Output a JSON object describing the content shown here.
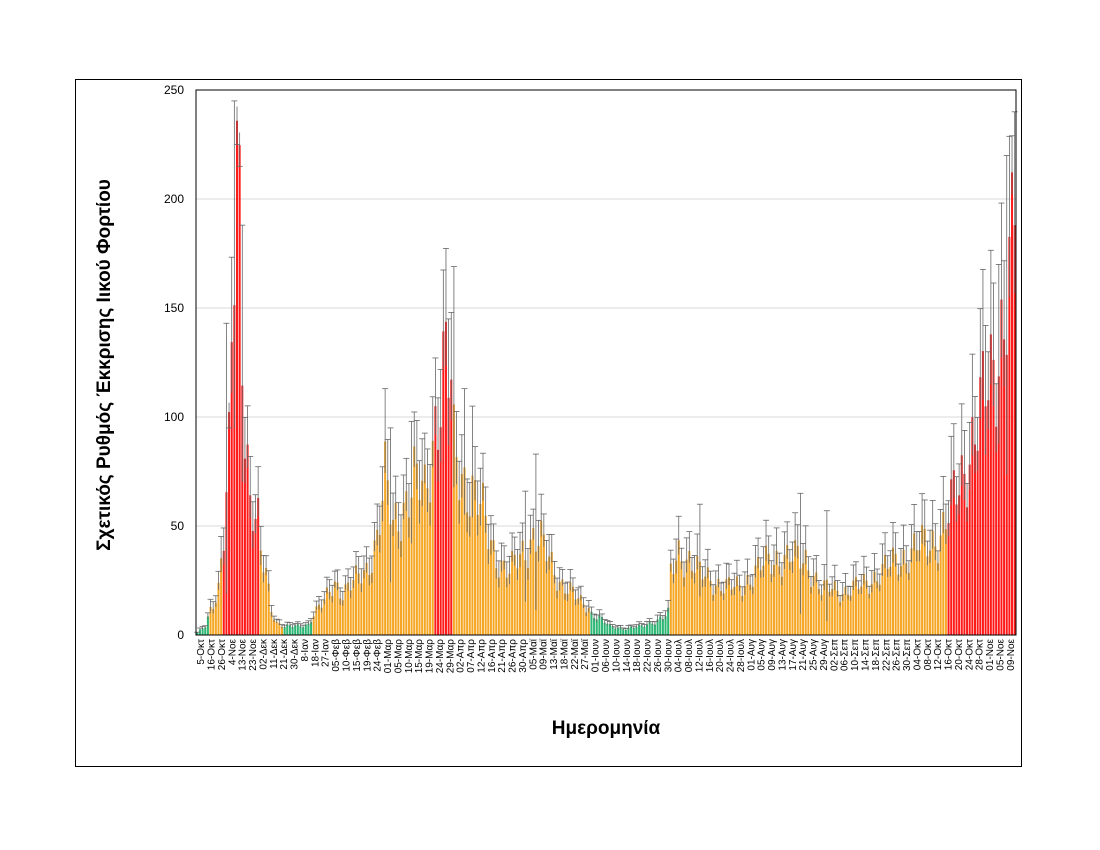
{
  "chart_data": {
    "type": "bar",
    "title": "",
    "ylabel": "Σχετικός Ρυθμός Έκκρισης Ιικού Φορτίου",
    "xlabel": "Ημερομηνία",
    "ylim": [
      0,
      250
    ],
    "yticks": [
      0,
      50,
      100,
      150,
      200,
      250
    ],
    "grid": "horizontal",
    "error_bars": true,
    "colors": {
      "low": "#2bb673",
      "medium": "#f5a623",
      "high": "#ff1a1a",
      "error": "#666666",
      "grid": "#d9d9d9"
    },
    "tick_labels": [
      "5-Οκτ",
      "16-Οκτ",
      "26-Οκτ",
      "4-Νοε",
      "13-Νοε",
      "23-Νοε",
      "02-Δεκ",
      "11-Δεκ",
      "21-Δεκ",
      "30-Δεκ",
      "8-Ιαν",
      "18-Ιαν",
      "27-Ιαν",
      "05-Φεβ",
      "10-Φεβ",
      "15-Φεβ",
      "19-Φεβ",
      "24-Φεβ",
      "01-Μαρ",
      "05-Μαρ",
      "10-Μαρ",
      "15-Μαρ",
      "19-Μαρ",
      "24-Μαρ",
      "29-Μαρ",
      "02-Απρ",
      "07-Απρ",
      "12-Απρ",
      "16-Απρ",
      "21-Απρ",
      "26-Απρ",
      "30-Απρ",
      "05-Μαϊ",
      "09-Μαϊ",
      "13-Μαϊ",
      "18-Μαϊ",
      "22-Μαϊ",
      "27-Μαϊ",
      "01-Ιουν",
      "06-Ιουν",
      "10-Ιουν",
      "14-Ιουν",
      "18-Ιουν",
      "22-Ιουν",
      "26-Ιουν",
      "30-Ιουν",
      "04-Ιουλ",
      "08-Ιουλ",
      "12-Ιουλ",
      "16-Ιουλ",
      "20-Ιουλ",
      "24-Ιουλ",
      "28-Ιουλ",
      "01-Αυγ",
      "05-Αυγ",
      "09-Αυγ",
      "13-Αυγ",
      "17-Αυγ",
      "21-Αυγ",
      "25-Αυγ",
      "29-Αυγ",
      "02-Σεπ",
      "06-Σεπ",
      "10-Σεπ",
      "14-Σεπ",
      "18-Σεπ",
      "22-Σεπ",
      "26-Σεπ",
      "30-Σεπ",
      "04-Οκτ",
      "08-Οκτ",
      "12-Οκτ",
      "16-Οκτ",
      "20-Οκτ",
      "24-Οκτ",
      "28-Οκτ",
      "01-Νοε",
      "05-Νοε",
      "09-Νοε"
    ],
    "profile": [
      [
        0,
        1,
        "low"
      ],
      [
        3,
        4,
        "low"
      ],
      [
        5,
        12,
        "medium"
      ],
      [
        8,
        22,
        "medium"
      ],
      [
        10,
        45,
        "high"
      ],
      [
        12,
        80,
        "high"
      ],
      [
        13,
        125,
        "high"
      ],
      [
        14,
        170,
        "high"
      ],
      [
        15,
        218,
        "high"
      ],
      [
        16,
        200,
        "high"
      ],
      [
        17,
        140,
        "high"
      ],
      [
        18,
        105,
        "high"
      ],
      [
        20,
        62,
        "high"
      ],
      [
        23,
        50,
        "high"
      ],
      [
        24,
        35,
        "medium"
      ],
      [
        26,
        28,
        "medium"
      ],
      [
        28,
        12,
        "medium"
      ],
      [
        30,
        6,
        "medium"
      ],
      [
        33,
        4,
        "low"
      ],
      [
        38,
        4,
        "low"
      ],
      [
        42,
        5,
        "low"
      ],
      [
        44,
        10,
        "medium"
      ],
      [
        48,
        15,
        "medium"
      ],
      [
        52,
        24,
        "medium"
      ],
      [
        55,
        20,
        "medium"
      ],
      [
        60,
        25,
        "medium"
      ],
      [
        64,
        30,
        "medium"
      ],
      [
        68,
        45,
        "medium"
      ],
      [
        71,
        70,
        "medium"
      ],
      [
        74,
        50,
        "medium"
      ],
      [
        78,
        60,
        "medium"
      ],
      [
        82,
        70,
        "medium"
      ],
      [
        86,
        65,
        "medium"
      ],
      [
        88,
        80,
        "medium"
      ],
      [
        90,
        100,
        "high"
      ],
      [
        92,
        110,
        "high"
      ],
      [
        94,
        125,
        "high"
      ],
      [
        96,
        110,
        "high"
      ],
      [
        97,
        85,
        "medium"
      ],
      [
        100,
        75,
        "medium"
      ],
      [
        104,
        65,
        "medium"
      ],
      [
        108,
        55,
        "medium"
      ],
      [
        112,
        40,
        "medium"
      ],
      [
        115,
        32,
        "medium"
      ],
      [
        118,
        28,
        "medium"
      ],
      [
        121,
        35,
        "medium"
      ],
      [
        124,
        40,
        "medium"
      ],
      [
        127,
        45,
        "medium"
      ],
      [
        130,
        42,
        "medium"
      ],
      [
        133,
        35,
        "medium"
      ],
      [
        137,
        25,
        "medium"
      ],
      [
        141,
        20,
        "medium"
      ],
      [
        145,
        15,
        "medium"
      ],
      [
        148,
        13,
        "medium"
      ],
      [
        149,
        10,
        "low"
      ],
      [
        152,
        8,
        "low"
      ],
      [
        156,
        4,
        "low"
      ],
      [
        162,
        3,
        "low"
      ],
      [
        168,
        4,
        "low"
      ],
      [
        172,
        6,
        "low"
      ],
      [
        176,
        8,
        "low"
      ],
      [
        178,
        10,
        "low"
      ],
      [
        179,
        28,
        "medium"
      ],
      [
        182,
        38,
        "medium"
      ],
      [
        186,
        35,
        "medium"
      ],
      [
        190,
        28,
        "medium"
      ],
      [
        195,
        25,
        "medium"
      ],
      [
        200,
        22,
        "medium"
      ],
      [
        205,
        22,
        "medium"
      ],
      [
        210,
        28,
        "medium"
      ],
      [
        215,
        33,
        "medium"
      ],
      [
        220,
        36,
        "medium"
      ],
      [
        225,
        35,
        "medium"
      ],
      [
        230,
        35,
        "medium"
      ],
      [
        233,
        28,
        "medium"
      ],
      [
        236,
        20,
        "medium"
      ],
      [
        240,
        22,
        "medium"
      ],
      [
        245,
        20,
        "medium"
      ],
      [
        250,
        22,
        "medium"
      ],
      [
        255,
        26,
        "medium"
      ],
      [
        260,
        30,
        "medium"
      ],
      [
        265,
        35,
        "medium"
      ],
      [
        270,
        38,
        "medium"
      ],
      [
        275,
        42,
        "medium"
      ],
      [
        280,
        45,
        "medium"
      ],
      [
        283,
        50,
        "medium"
      ],
      [
        284,
        55,
        "high"
      ],
      [
        288,
        70,
        "high"
      ],
      [
        292,
        85,
        "high"
      ],
      [
        295,
        95,
        "high"
      ],
      [
        298,
        110,
        "high"
      ],
      [
        302,
        130,
        "high"
      ],
      [
        305,
        145,
        "high"
      ],
      [
        308,
        170,
        "high"
      ],
      [
        309,
        190,
        "high"
      ]
    ],
    "error_fraction": 0.17,
    "error_spikes": [
      [
        14,
        245
      ],
      [
        15,
        225
      ],
      [
        16,
        215
      ],
      [
        17,
        188
      ],
      [
        11,
        143
      ],
      [
        12,
        95
      ],
      [
        71,
        113
      ],
      [
        73,
        95
      ],
      [
        81,
        98
      ],
      [
        85,
        90
      ],
      [
        95,
        145
      ],
      [
        97,
        169
      ],
      [
        101,
        113
      ],
      [
        104,
        105
      ],
      [
        124,
        66
      ],
      [
        128,
        83
      ],
      [
        190,
        60
      ],
      [
        228,
        65
      ],
      [
        238,
        57
      ],
      [
        298,
        142
      ],
      [
        303,
        170
      ],
      [
        306,
        220
      ],
      [
        308,
        229
      ],
      [
        309,
        240
      ]
    ]
  }
}
